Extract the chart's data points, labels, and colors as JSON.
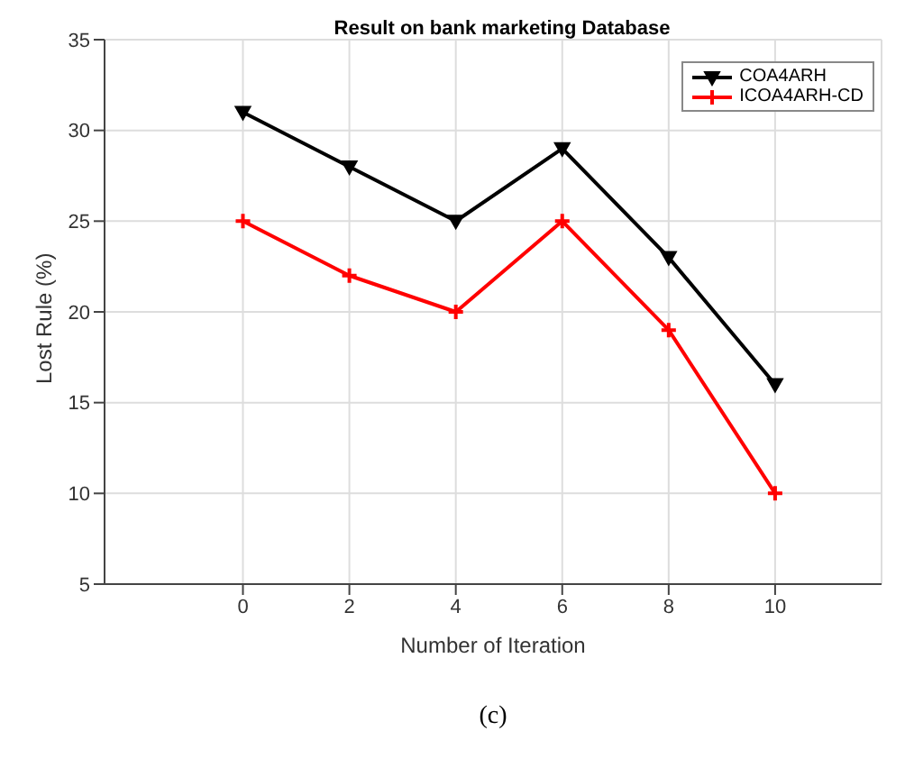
{
  "chart_data": {
    "type": "line",
    "title": "Result on bank marketing Database",
    "xlabel": "Number of Iteration",
    "ylabel": "Lost Rule (%)",
    "x": [
      0,
      2,
      4,
      6,
      8,
      10
    ],
    "series": [
      {
        "name": "COA4ARH",
        "color": "#000000",
        "marker": "triangle",
        "values": [
          31,
          28,
          25,
          29,
          23,
          16
        ]
      },
      {
        "name": "ICOA4ARH-CD",
        "color": "#ff0000",
        "marker": "cross",
        "values": [
          25,
          22,
          20,
          25,
          19,
          10
        ]
      }
    ],
    "xlim": [
      -2.6,
      12
    ],
    "xticks": [
      0,
      2,
      4,
      6,
      8,
      10
    ],
    "ylim": [
      5,
      35
    ],
    "yticks": [
      5,
      10,
      15,
      20,
      25,
      30,
      35
    ],
    "grid": true,
    "legend": "top right",
    "line_style": "solid",
    "annotations": [
      "(c)"
    ]
  }
}
